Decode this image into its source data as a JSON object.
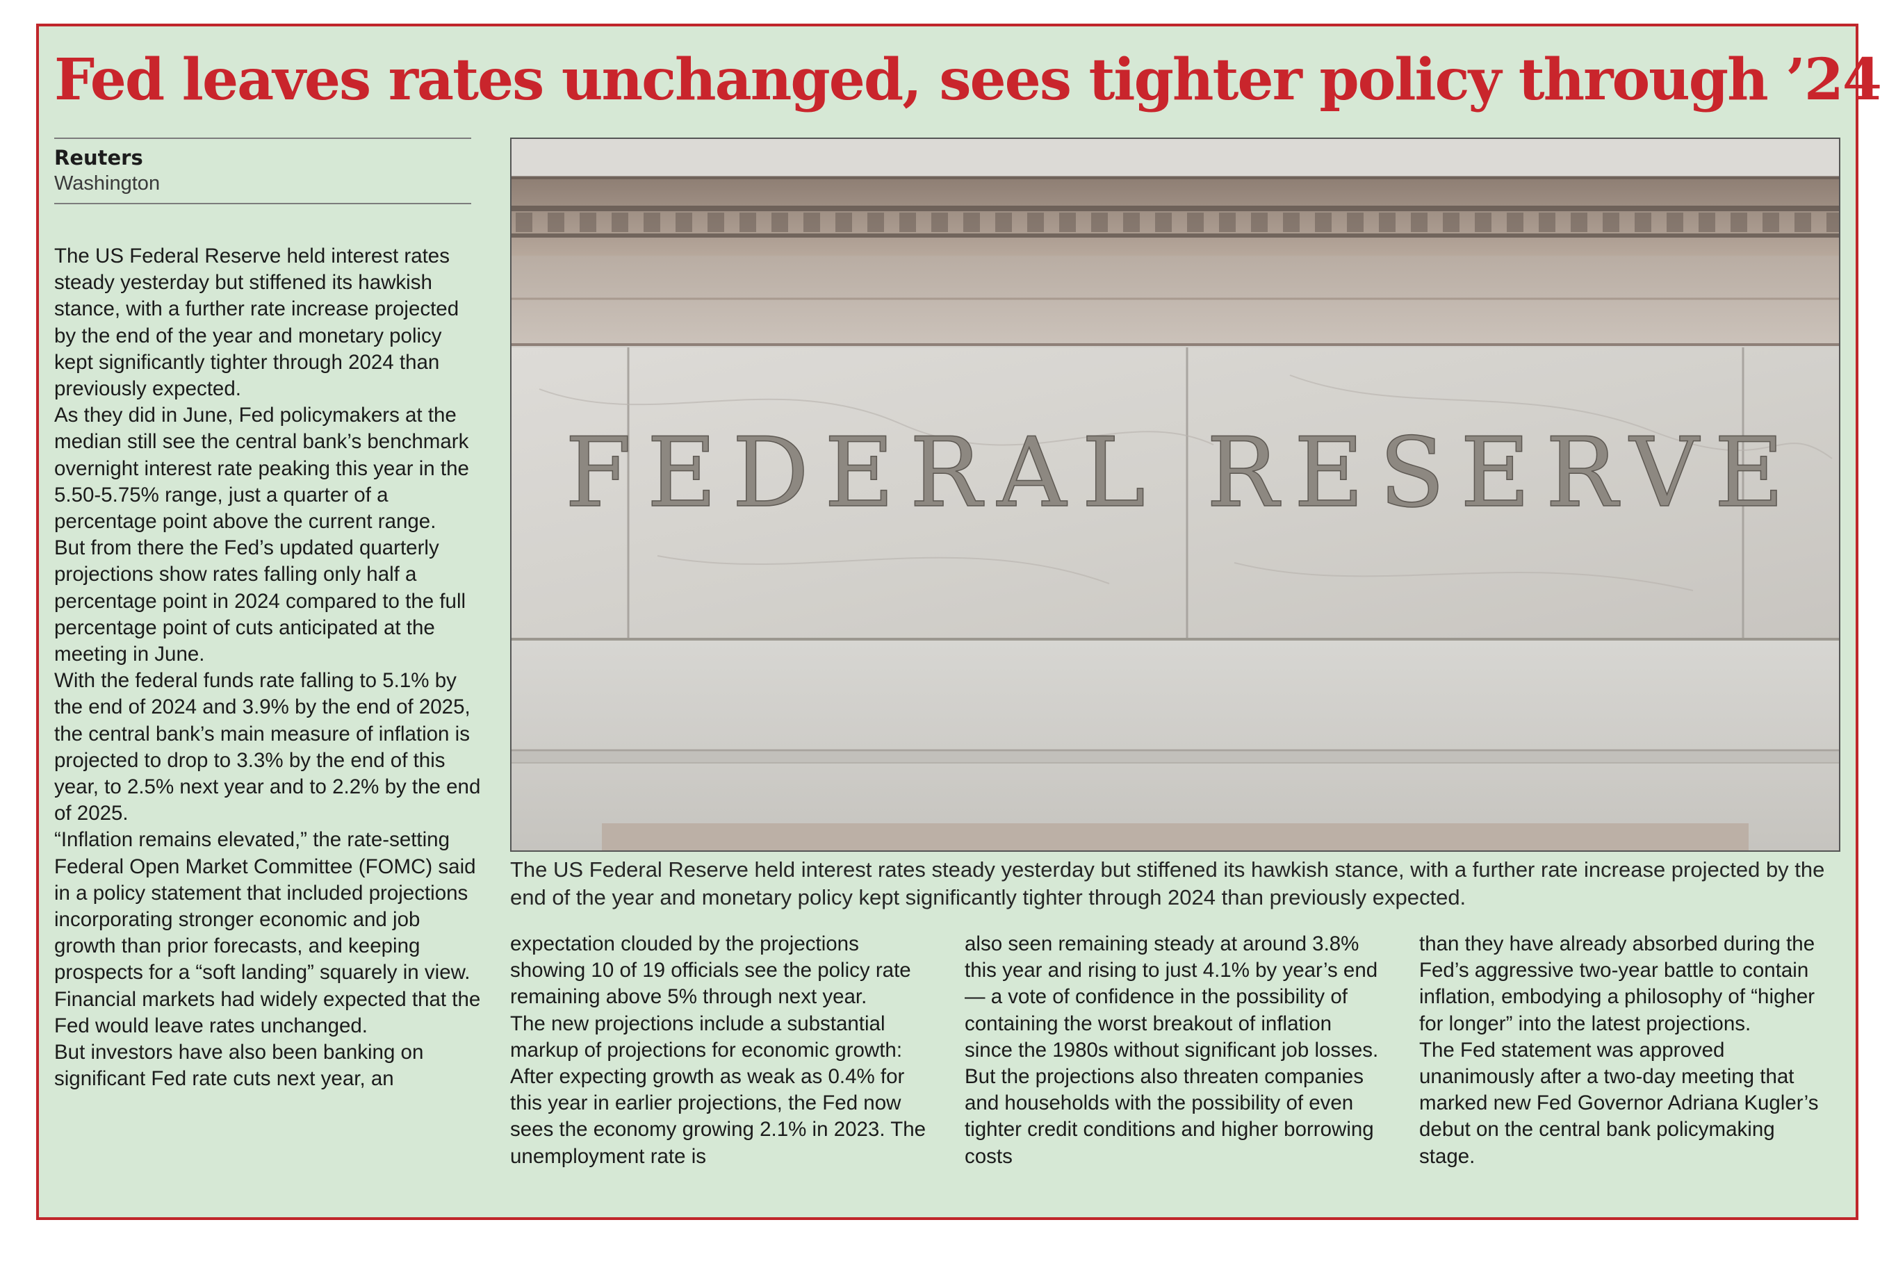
{
  "article": {
    "headline": "Fed leaves rates unchanged, sees tighter policy through ’24",
    "byline": {
      "agency": "Reuters",
      "location": "Washington"
    },
    "photo": {
      "inscription": "FEDERAL RESERVE",
      "caption": "The US Federal Reserve held interest rates steady yesterday but stiffened its hawkish stance, with a further rate increase projected by the end of the year and monetary policy kept significantly tighter through 2024 than previously expected."
    },
    "columns": [
      {
        "paragraphs": [
          "The US Federal Reserve held interest rates steady yesterday but stiffened its hawkish stance, with a further rate increase projected by the end of the year and monetary policy kept significantly tighter through 2024 than previously expected.",
          "As they did in June, Fed policymakers at the median still see the central bank’s benchmark overnight interest rate peaking this year in the 5.50-5.75% range, just a quarter of a percentage point above the current range.",
          "But from there the Fed’s updated quarterly projections show rates falling only half a percentage point in 2024 compared to the full percentage point of cuts anticipated at the meeting in June.",
          "With the federal funds rate falling to 5.1% by the end of 2024 and 3.9% by the end of 2025, the central bank’s main measure of inflation is projected to drop to 3.3% by the end of this year, to 2.5% next year and to 2.2% by the end of 2025.",
          "“Inflation remains elevated,” the rate-setting Federal Open Market Committee (FOMC) said in a policy statement that included projections incorporating stronger economic and job growth than prior forecasts, and keeping prospects for a “soft landing” squarely in view.",
          "Financial markets had widely expected that the Fed would leave rates unchanged.",
          "But investors have also been banking on significant Fed rate cuts next year, an"
        ]
      },
      {
        "paragraphs": [
          "expectation clouded by the projections showing 10 of 19 officials see the policy rate remaining above 5% through next year.",
          "The new projections include a substantial markup of projections for economic growth: After expecting growth as weak as 0.4% for this year in earlier projections, the Fed now sees the economy growing 2.1% in 2023. The unemployment rate is"
        ]
      },
      {
        "paragraphs": [
          "also seen remaining steady at around 3.8% this year and rising to just 4.1% by year’s end — a vote of confidence in the possibility of containing the worst breakout of inflation since the 1980s without significant job losses.",
          "But the projections also threaten companies and households with the possibility of even tighter credit conditions and higher borrowing costs"
        ]
      },
      {
        "paragraphs": [
          "than they have already absorbed during the Fed’s aggressive two-year battle to contain inflation, embodying a philosophy of “higher for longer” into the latest projections.",
          "The Fed statement was approved unanimously after a two-day meeting that marked new Fed Governor Adriana Kugler’s debut on the central bank policymaking stage."
        ]
      }
    ]
  },
  "colors": {
    "headline": "#c9252c",
    "frame_border": "#c0262b",
    "background": "#d6e8d5"
  }
}
